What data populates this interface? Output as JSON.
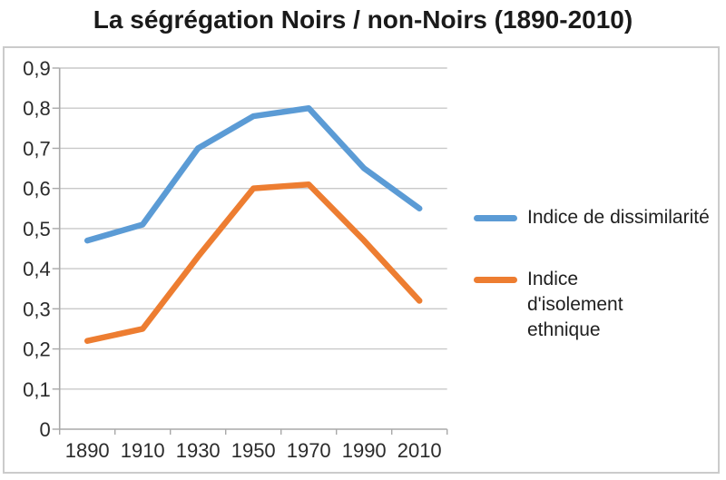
{
  "chart_data": {
    "type": "line",
    "title": "La ségrégation Noirs / non-Noirs (1890-2010)",
    "categories": [
      "1890",
      "1910",
      "1930",
      "1950",
      "1970",
      "1990",
      "2010"
    ],
    "series": [
      {
        "name": "Indice de dissimilarité",
        "color": "#5B9BD5",
        "values": [
          0.47,
          0.51,
          0.7,
          0.78,
          0.8,
          0.65,
          0.55
        ]
      },
      {
        "name": "Indice d'isolement ethnique",
        "color": "#ED7D31",
        "values": [
          0.22,
          0.25,
          0.43,
          0.6,
          0.61,
          0.47,
          0.32
        ]
      }
    ],
    "xlabel": "",
    "ylabel": "",
    "ylim": [
      0,
      0.9
    ],
    "y_ticks": {
      "values": [
        0,
        0.1,
        0.2,
        0.3,
        0.4,
        0.5,
        0.6,
        0.7,
        0.8,
        0.9
      ],
      "labels": [
        "0",
        "0,1",
        "0,2",
        "0,3",
        "0,4",
        "0,5",
        "0,6",
        "0,7",
        "0,8",
        "0,9"
      ]
    },
    "grid": true,
    "legend_position": "right",
    "colors": {
      "gridline": "#c9c9c9",
      "axis": "#a9a9a9",
      "tick_label": "#2b2b2b",
      "frame_border": "#cbcbcb"
    }
  }
}
